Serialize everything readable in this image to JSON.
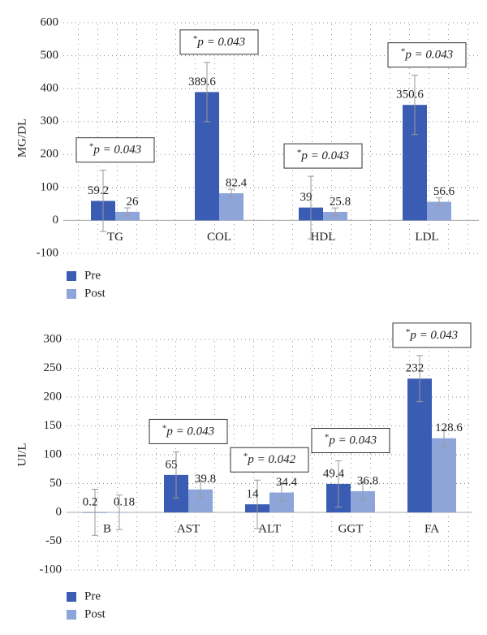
{
  "chart_data": [
    {
      "type": "bar",
      "y_label": "MG/DL",
      "categories": [
        "TG",
        "COL",
        "HDL",
        "LDL"
      ],
      "series": [
        {
          "name": "Pre",
          "color": "#3b5cb3",
          "values": [
            59.2,
            389.6,
            39,
            350.6
          ],
          "errors": [
            93,
            90,
            95,
            90
          ]
        },
        {
          "name": "Post",
          "color": "#8ea5d9",
          "values": [
            26,
            82.4,
            25.8,
            56.6
          ],
          "errors": [
            12,
            12,
            12,
            12
          ]
        }
      ],
      "annotations": [
        {
          "marker": "*",
          "text": "p = 0.043"
        },
        {
          "marker": "*",
          "text": "p = 0.043"
        },
        {
          "marker": "*",
          "text": "p = 0.043"
        },
        {
          "marker": "*",
          "text": "p = 0.043"
        }
      ],
      "ylim": [
        -100,
        600
      ],
      "yticks": [
        -100,
        0,
        100,
        200,
        300,
        400,
        500,
        600
      ],
      "grid": true
    },
    {
      "type": "bar",
      "y_label": "UI/L",
      "categories": [
        "B",
        "AST",
        "ALT",
        "GGT",
        "FA"
      ],
      "series": [
        {
          "name": "Pre",
          "color": "#3b5cb3",
          "values": [
            0.2,
            65,
            14,
            49.4,
            232
          ],
          "errors": [
            40,
            40,
            42,
            40,
            40
          ]
        },
        {
          "name": "Post",
          "color": "#8ea5d9",
          "values": [
            0.18,
            39.8,
            34.4,
            36.8,
            128.6
          ],
          "errors": [
            30,
            15,
            15,
            15,
            15
          ]
        }
      ],
      "annotations": [
        null,
        {
          "marker": "*",
          "text": "p = 0.043"
        },
        {
          "marker": "*",
          "text": "p = 0.042"
        },
        {
          "marker": "*",
          "text": "p = 0.043"
        },
        {
          "marker": "*",
          "text": "p = 0.043"
        }
      ],
      "ylim": [
        -100,
        300
      ],
      "yticks": [
        -100,
        -50,
        0,
        50,
        100,
        150,
        200,
        250,
        300
      ],
      "grid": true
    }
  ]
}
